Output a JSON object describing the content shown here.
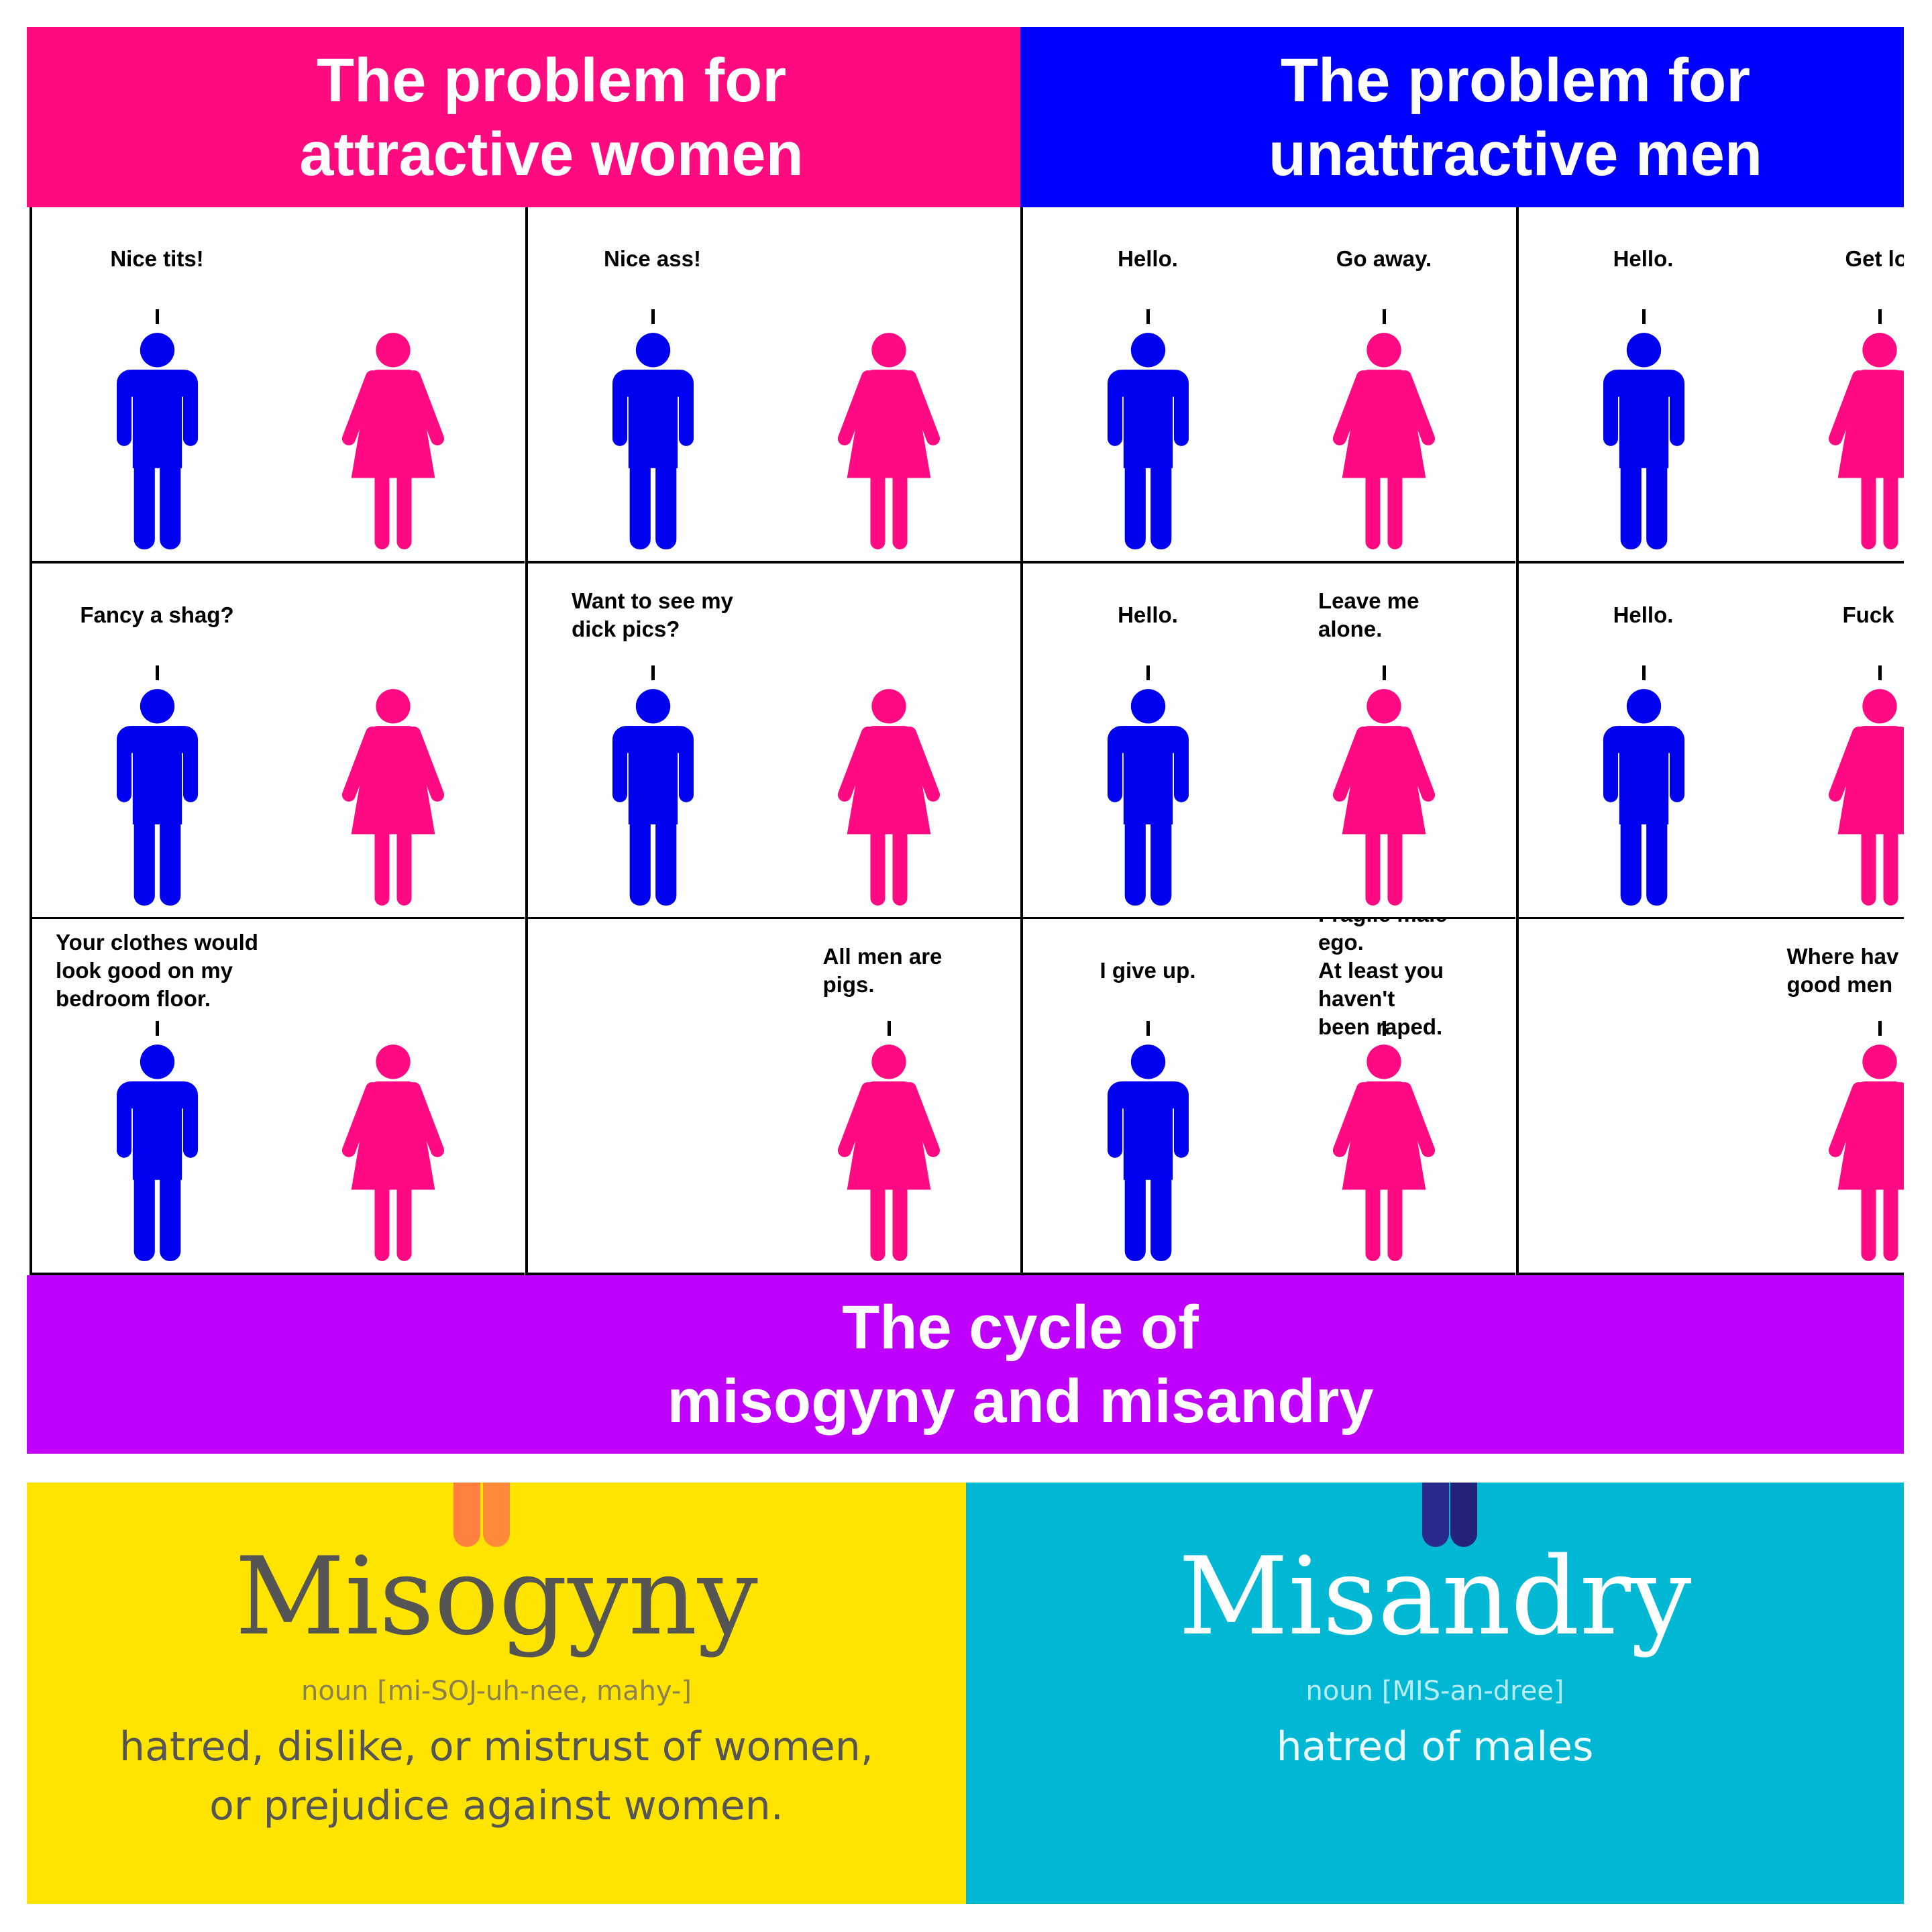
{
  "colors": {
    "women_header": "#ff0a7f",
    "men_header": "#0000ff",
    "cycle_band": "#bf00ff",
    "man_figure": "#0000f0",
    "woman_figure": "#ff0a82",
    "misogyny_bg": "#ffe400",
    "misandry_bg": "#00b8d4"
  },
  "headers": {
    "women": "The problem for\nattractive women",
    "men": "The problem for\nunattractive men",
    "cycle": "The cycle of\nmisogyny and misandry"
  },
  "cells": [
    {
      "man_visible": true,
      "man_says": "Nice tits!",
      "woman_says": ""
    },
    {
      "man_visible": true,
      "man_says": "Nice ass!",
      "woman_says": ""
    },
    {
      "man_visible": true,
      "man_says": "Hello.",
      "woman_says": "Go away."
    },
    {
      "man_visible": true,
      "man_says": "Hello.",
      "woman_says": "Get lo"
    },
    {
      "man_visible": true,
      "man_says": "Fancy a shag?",
      "woman_says": ""
    },
    {
      "man_visible": true,
      "man_says": "Want to see my\ndick pics?",
      "woman_says": ""
    },
    {
      "man_visible": true,
      "man_says": "Hello.",
      "woman_says": "Leave me alone."
    },
    {
      "man_visible": true,
      "man_says": "Hello.",
      "woman_says": "Fuck"
    },
    {
      "man_visible": true,
      "man_says": "Your clothes would\nlook good on my\nbedroom floor.",
      "woman_says": ""
    },
    {
      "man_visible": false,
      "man_says": "",
      "woman_says": "All men are pigs."
    },
    {
      "man_visible": true,
      "man_says": "I give up.",
      "woman_says": "Fragile male ego.\nAt least you haven't\nbeen raped."
    },
    {
      "man_visible": false,
      "man_says": "",
      "woman_says": "Where hav\ngood men"
    }
  ],
  "misogyny": {
    "title": "Misogyny",
    "pronunciation": "noun [mi-SOJ-uh-nee, mahy-]",
    "definition": "hatred, dislike, or mistrust of women,\nor prejudice against women.",
    "bookmark_color": "#ff8040"
  },
  "misandry": {
    "title": "Misandry",
    "pronunciation": "noun [MIS-an-dree]",
    "definition": "hatred of males",
    "bookmark_color": "#2a2a8a"
  }
}
